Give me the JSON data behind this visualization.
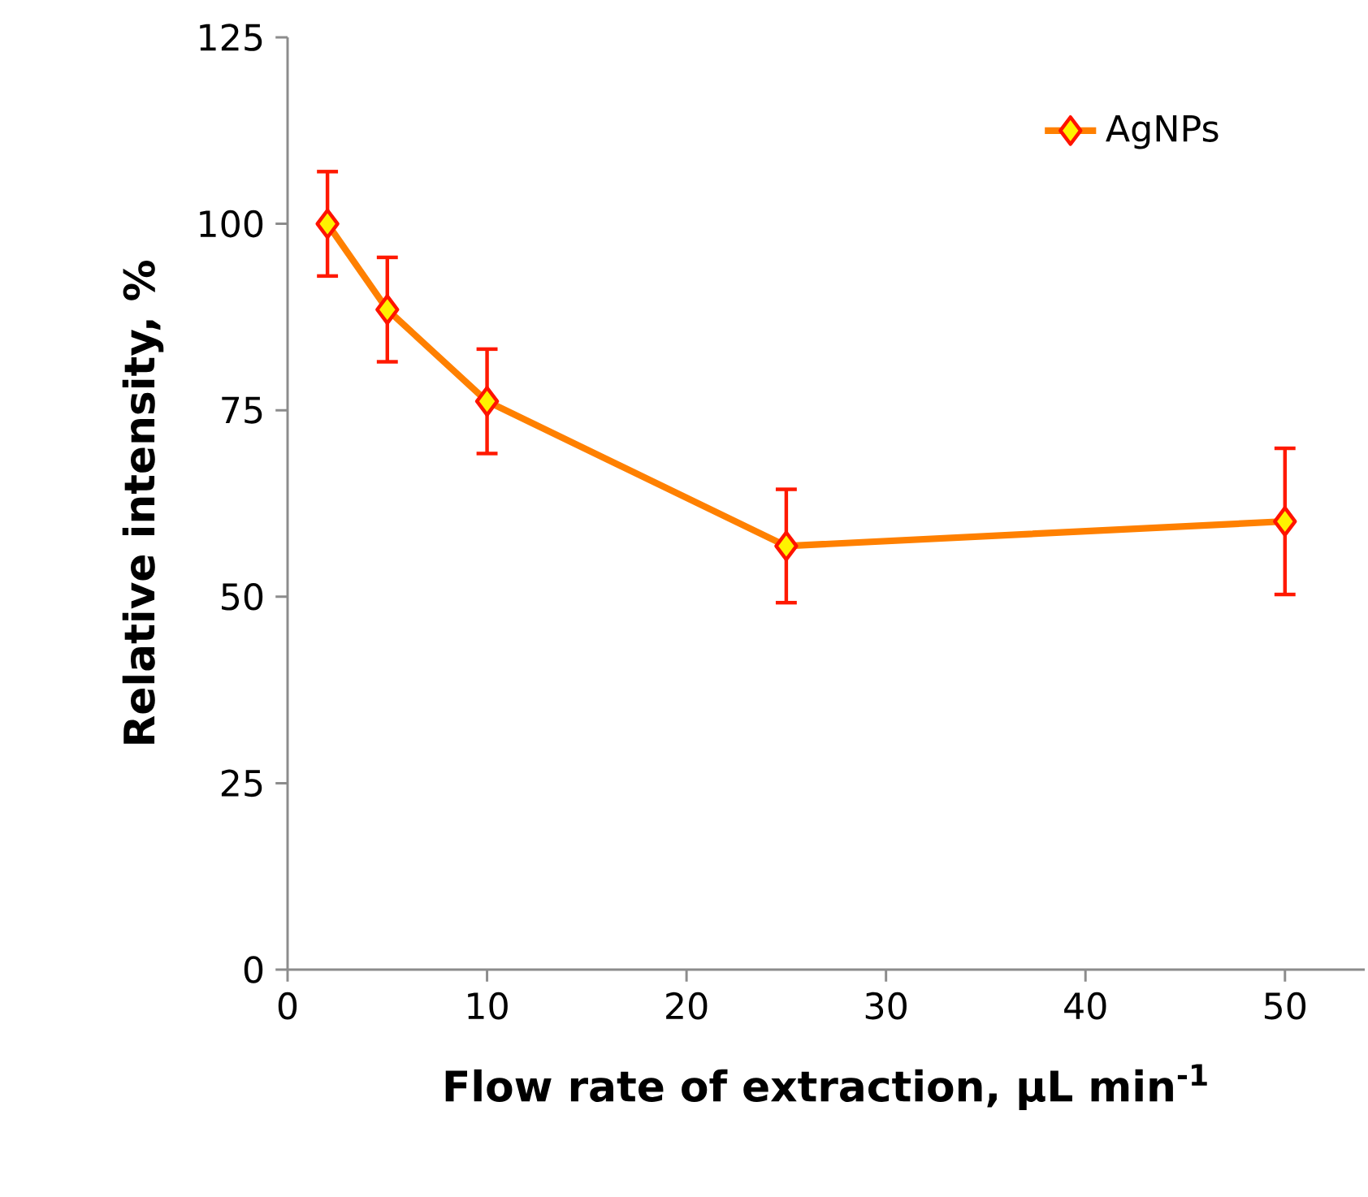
{
  "chart_data": {
    "type": "line",
    "xlabel": "Flow rate of extraction, µL min$^{-1}$",
    "ylabel": "Relative intensity, %",
    "x": [
      2,
      5,
      10,
      25,
      50
    ],
    "series": [
      {
        "name": "AgNPs",
        "color": "#ff8000",
        "values": [
          100,
          88.5,
          76.2,
          56.8,
          60.1
        ],
        "errors": [
          7,
          7,
          7,
          7.6,
          9.8
        ]
      }
    ],
    "xlim": [
      0,
      54
    ],
    "ylim": [
      0,
      125
    ],
    "xticks": [
      0,
      10,
      20,
      30,
      40,
      50
    ],
    "yticks": [
      0,
      25,
      50,
      75,
      100,
      125
    ],
    "grid": false,
    "legend": "top right",
    "marker": "diamond",
    "line_style": "solid"
  }
}
